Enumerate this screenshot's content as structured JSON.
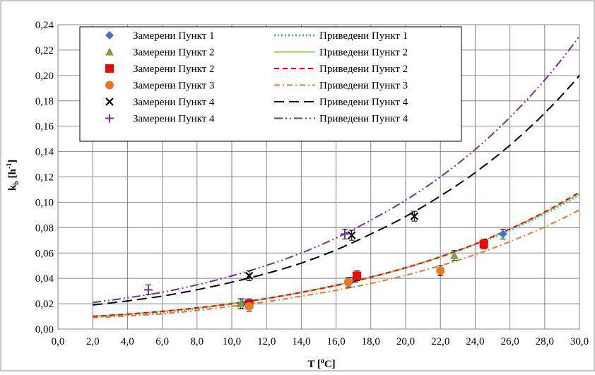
{
  "chart_data": {
    "type": "scatter",
    "xlabel_main": "T [",
    "xlabel_sup": "o",
    "xlabel_tail": "C]",
    "ylabel_main": "k",
    "ylabel_sub": "b",
    "ylabel_mid": " [h",
    "ylabel_sup": "-1",
    "ylabel_tail": "]",
    "xlim": [
      0,
      30
    ],
    "ylim": [
      0,
      0.24
    ],
    "x_ticks": [
      "0,0",
      "2,0",
      "4,0",
      "6,0",
      "8,0",
      "10,0",
      "12,0",
      "14,0",
      "16,0",
      "18,0",
      "20,0",
      "22,0",
      "24,0",
      "26,0",
      "28,0",
      "30,0"
    ],
    "y_ticks": [
      "0,00",
      "0,02",
      "0,04",
      "0,06",
      "0,08",
      "0,10",
      "0,12",
      "0,14",
      "0,16",
      "0,18",
      "0,20",
      "0,22",
      "0,24"
    ],
    "grid": true,
    "legend_position": "top-left",
    "measured": [
      {
        "name": "Замерени Пункт 1",
        "marker": "diamond",
        "color": "#4472C4",
        "points": [
          [
            10.6,
            0.02
          ],
          [
            16.8,
            0.037
          ],
          [
            25.6,
            0.075
          ]
        ]
      },
      {
        "name": "Замерени Пункт 2",
        "marker": "triangle",
        "color": "#7FA03C",
        "points": [
          [
            10.5,
            0.02
          ],
          [
            17.1,
            0.041
          ],
          [
            22.8,
            0.058
          ]
        ]
      },
      {
        "name": "Замерени Пункт 2",
        "marker": "square",
        "color": "#FF0000",
        "points": [
          [
            11.0,
            0.02
          ],
          [
            17.2,
            0.042
          ],
          [
            24.5,
            0.067
          ]
        ]
      },
      {
        "name": "Замерени Пункт 3",
        "marker": "circle",
        "color": "#E87722",
        "points": [
          [
            11.0,
            0.018
          ],
          [
            16.7,
            0.037
          ],
          [
            22.0,
            0.046
          ]
        ]
      },
      {
        "name": "Замерени Пункт 4",
        "marker": "x",
        "color": "#000000",
        "points": [
          [
            11.0,
            0.042
          ],
          [
            16.9,
            0.074
          ],
          [
            20.5,
            0.089
          ]
        ]
      },
      {
        "name": "Замерени Пункт 4",
        "marker": "plus",
        "color": "#7030A0",
        "points": [
          [
            5.2,
            0.031
          ],
          [
            16.5,
            0.075
          ]
        ]
      }
    ],
    "fitted": [
      {
        "name": "Приведени Пункт 1",
        "style": "dotted",
        "color": "#4BACC6",
        "points": [
          [
            2,
            0.01
          ],
          [
            6,
            0.013
          ],
          [
            10,
            0.02
          ],
          [
            14,
            0.029
          ],
          [
            18,
            0.041
          ],
          [
            22,
            0.057
          ],
          [
            26,
            0.078
          ],
          [
            30,
            0.106
          ]
        ]
      },
      {
        "name": "Приведени Пункт 2",
        "style": "solid",
        "color": "#92D050",
        "points": [
          [
            2,
            0.01
          ],
          [
            6,
            0.014
          ],
          [
            10,
            0.02
          ],
          [
            14,
            0.029
          ],
          [
            18,
            0.041
          ],
          [
            22,
            0.057
          ],
          [
            26,
            0.079
          ],
          [
            30,
            0.107
          ]
        ]
      },
      {
        "name": "Приведени Пункт 2",
        "style": "dashed",
        "color": "#FF0000",
        "points": [
          [
            2,
            0.01
          ],
          [
            6,
            0.014
          ],
          [
            10,
            0.02
          ],
          [
            14,
            0.029
          ],
          [
            18,
            0.041
          ],
          [
            22,
            0.057
          ],
          [
            26,
            0.079
          ],
          [
            30,
            0.108
          ]
        ]
      },
      {
        "name": "Приведени Пункт 3",
        "style": "dashdot",
        "color": "#E87722",
        "points": [
          [
            2,
            0.009
          ],
          [
            6,
            0.012
          ],
          [
            10,
            0.018
          ],
          [
            14,
            0.026
          ],
          [
            18,
            0.036
          ],
          [
            22,
            0.05
          ],
          [
            26,
            0.069
          ],
          [
            30,
            0.094
          ]
        ]
      },
      {
        "name": "Приведени Пункт 4",
        "style": "longdash",
        "color": "#000000",
        "points": [
          [
            2,
            0.019
          ],
          [
            6,
            0.026
          ],
          [
            10,
            0.037
          ],
          [
            14,
            0.052
          ],
          [
            18,
            0.075
          ],
          [
            22,
            0.105
          ],
          [
            26,
            0.145
          ],
          [
            30,
            0.2
          ]
        ]
      },
      {
        "name": "Приведени Пункт 4",
        "style": "dashdotdot",
        "color": "#7030A0",
        "points": [
          [
            2,
            0.021
          ],
          [
            6,
            0.029
          ],
          [
            10,
            0.042
          ],
          [
            14,
            0.06
          ],
          [
            18,
            0.086
          ],
          [
            22,
            0.12
          ],
          [
            26,
            0.167
          ],
          [
            30,
            0.231
          ]
        ]
      }
    ]
  }
}
